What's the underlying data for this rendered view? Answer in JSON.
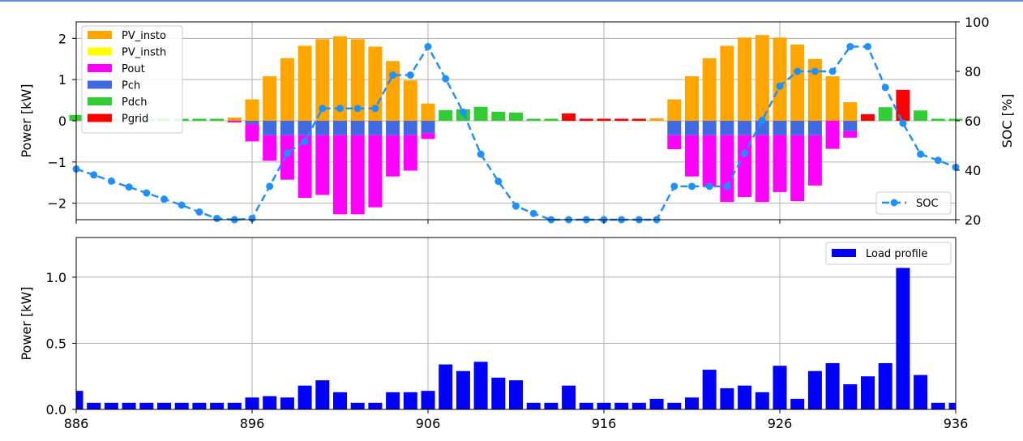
{
  "chart_data": [
    {
      "type": "bar",
      "x": [
        886,
        887,
        888,
        889,
        890,
        891,
        892,
        893,
        894,
        895,
        896,
        897,
        898,
        899,
        900,
        901,
        902,
        903,
        904,
        905,
        906,
        907,
        908,
        909,
        910,
        911,
        912,
        913,
        914,
        915,
        916,
        917,
        918,
        919,
        920,
        921,
        922,
        923,
        924,
        925,
        926,
        927,
        928,
        929,
        930,
        931,
        932,
        933,
        934,
        935,
        936
      ],
      "ylabel": "Power [kW]",
      "y2label": "SOC [%]",
      "ylim": [
        -2.4,
        2.4
      ],
      "y2lim": [
        20,
        100
      ],
      "yticks": [
        "2",
        "1",
        "0",
        "−1",
        "−2"
      ],
      "y2ticks": [
        "100",
        "80",
        "60",
        "40",
        "20"
      ],
      "grid": true,
      "legend_position": "top-left",
      "series": [
        {
          "name": "PV_insto",
          "color": "#ffa500",
          "values": [
            0,
            0,
            0,
            0,
            0,
            0,
            0,
            0,
            0,
            0.08,
            0.52,
            1.08,
            1.52,
            1.82,
            1.98,
            2.05,
            1.98,
            1.8,
            1.45,
            0.98,
            0.42,
            0,
            0,
            0,
            0,
            0,
            0,
            0,
            0,
            0,
            0,
            0,
            0,
            0.06,
            0.52,
            1.08,
            1.52,
            1.82,
            2.02,
            2.08,
            2.02,
            1.85,
            1.5,
            1.08,
            0.45,
            0,
            0,
            0,
            0,
            0,
            0
          ]
        },
        {
          "name": "PV_insth",
          "color": "#ffff00",
          "values": [
            0,
            0,
            0,
            0,
            0,
            0,
            0,
            0,
            0,
            0,
            0,
            0,
            0,
            0,
            0,
            0,
            0,
            0,
            0,
            0,
            0,
            0,
            0,
            0,
            0,
            0,
            0,
            0,
            0,
            0,
            0,
            0,
            0,
            0,
            0,
            0,
            0,
            0,
            0,
            0,
            0,
            0,
            0,
            0,
            0,
            0,
            0,
            0,
            0,
            0,
            0
          ]
        },
        {
          "name": "Pout",
          "color": "#ff00ff",
          "values": [
            0,
            0,
            0,
            0,
            0,
            0,
            0,
            0,
            0,
            -0.04,
            -0.42,
            -0.62,
            -1.08,
            -1.52,
            -1.45,
            -1.92,
            -1.92,
            -1.75,
            -1.0,
            -0.86,
            -0.14,
            0,
            0,
            0,
            0,
            0,
            0,
            0,
            0,
            0,
            0,
            0,
            0,
            0,
            -0.34,
            -1.0,
            -1.25,
            -1.62,
            -1.5,
            -1.62,
            -1.38,
            -1.6,
            -1.22,
            -0.68,
            -0.16,
            0,
            0,
            0,
            0,
            0,
            0
          ]
        },
        {
          "name": "Pch",
          "color": "#4169e1",
          "values": [
            0,
            0,
            0,
            0,
            0,
            0,
            0,
            0,
            0,
            0,
            -0.08,
            -0.35,
            -0.35,
            -0.35,
            -0.35,
            -0.35,
            -0.35,
            -0.35,
            -0.35,
            -0.35,
            -0.3,
            0,
            0,
            0,
            0,
            0,
            0,
            0,
            0,
            0,
            0,
            0,
            0,
            0,
            -0.35,
            -0.35,
            -0.35,
            -0.35,
            -0.35,
            -0.35,
            -0.35,
            -0.35,
            -0.35,
            0,
            -0.25,
            0,
            0,
            0,
            0,
            0,
            0
          ]
        },
        {
          "name": "Pdch",
          "color": "#32cd32",
          "values": [
            0.14,
            0.05,
            0.05,
            0.05,
            0.05,
            0.05,
            0.05,
            0.05,
            0.05,
            0,
            0,
            0,
            0,
            0,
            0,
            0,
            0,
            0,
            0,
            0,
            0,
            0.26,
            0.28,
            0.34,
            0.22,
            0.2,
            0.05,
            0.05,
            0,
            0,
            0,
            0,
            0,
            0,
            0,
            0,
            0,
            0,
            0,
            0,
            0,
            0,
            0,
            0,
            0,
            0,
            0.33,
            0,
            0.25,
            0.05,
            0.05
          ]
        },
        {
          "name": "Pgrid",
          "color": "#ff0000",
          "values": [
            0,
            0,
            0,
            0,
            0,
            0,
            0,
            0,
            0,
            0,
            0,
            0,
            0,
            0,
            0,
            0,
            0,
            0,
            0,
            0,
            0,
            0,
            0,
            0,
            0,
            0,
            0,
            0,
            0.18,
            0.05,
            0.05,
            0.05,
            0.05,
            0,
            0,
            0,
            0,
            0,
            0,
            0,
            0,
            0,
            0,
            0,
            0,
            0.16,
            0,
            0.75,
            0,
            0,
            0
          ]
        }
      ],
      "soc_series": {
        "name": "SOC",
        "color": "#1e90ff",
        "legend_position": "bottom-right",
        "values": [
          40.5,
          38.1,
          35.6,
          33.2,
          30.8,
          28.3,
          25.9,
          23.1,
          20.5,
          20.0,
          20.5,
          33.5,
          46.9,
          51.7,
          65.0,
          65.0,
          65.0,
          65.0,
          78.5,
          78.5,
          90.0,
          77.0,
          63.5,
          46.5,
          35.5,
          25.5,
          22.5,
          20.0,
          20.0,
          20.0,
          20.0,
          20.0,
          20.0,
          20.0,
          33.5,
          33.5,
          33.5,
          33.5,
          46.9,
          60.2,
          74.0,
          80.0,
          80.0,
          80.0,
          90.0,
          90.0,
          73.5,
          59.0,
          46.5,
          44.0,
          41.2
        ]
      }
    },
    {
      "type": "bar",
      "x": [
        886,
        887,
        888,
        889,
        890,
        891,
        892,
        893,
        894,
        895,
        896,
        897,
        898,
        899,
        900,
        901,
        902,
        903,
        904,
        905,
        906,
        907,
        908,
        909,
        910,
        911,
        912,
        913,
        914,
        915,
        916,
        917,
        918,
        919,
        920,
        921,
        922,
        923,
        924,
        925,
        926,
        927,
        928,
        929,
        930,
        931,
        932,
        933,
        934,
        935,
        936
      ],
      "xticks": [
        "886",
        "896",
        "906",
        "916",
        "926",
        "936"
      ],
      "xlim": [
        886,
        936
      ],
      "ylabel": "Power [kW]",
      "ylim": [
        0,
        1.3
      ],
      "yticks": [
        "1.0",
        "0.5",
        "0.0"
      ],
      "grid": true,
      "legend_position": "top-right",
      "series": [
        {
          "name": "Load profile",
          "color": "#0000ff",
          "values": [
            0.14,
            0.05,
            0.05,
            0.05,
            0.05,
            0.05,
            0.05,
            0.05,
            0.05,
            0.05,
            0.09,
            0.1,
            0.09,
            0.18,
            0.22,
            0.13,
            0.05,
            0.05,
            0.13,
            0.13,
            0.14,
            0.34,
            0.29,
            0.36,
            0.24,
            0.22,
            0.05,
            0.05,
            0.18,
            0.05,
            0.05,
            0.05,
            0.05,
            0.08,
            0.05,
            0.09,
            0.3,
            0.16,
            0.18,
            0.13,
            0.33,
            0.08,
            0.29,
            0.35,
            0.19,
            0.25,
            0.35,
            1.07,
            0.26,
            0.05,
            0.05
          ]
        }
      ]
    }
  ]
}
